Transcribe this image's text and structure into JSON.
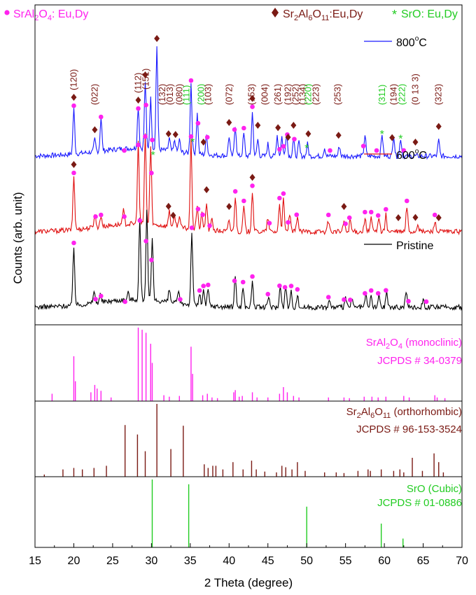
{
  "chart_data": {
    "type": "line",
    "xlabel": "2 Theta (degree)",
    "ylabel": "Counts (arb. unit)",
    "xlim": [
      15,
      70
    ],
    "xticks": [
      15,
      20,
      25,
      30,
      35,
      40,
      45,
      50,
      55,
      60,
      65,
      70
    ],
    "colors": {
      "srAl2O4": "#ff22ee",
      "sr2Al6O11": "#7a1a14",
      "srO": "#22cc22",
      "t800": "#1a1aff",
      "t600": "#e01010",
      "pristine": "#000000"
    },
    "legend": {
      "srAl2O4": {
        "formula": [
          "SrAl",
          "2",
          "O",
          "4"
        ],
        "suffix": ": Eu,Dy"
      },
      "sr2Al6O11": {
        "formula": [
          "Sr",
          "2",
          "Al",
          "6",
          "O",
          "11"
        ],
        "suffix": ":Eu,Dy"
      },
      "srO": {
        "text": "SrO: Eu,Dy"
      }
    },
    "series": [
      {
        "name": "800°C",
        "label_main": "800",
        "label_sup": "o",
        "label_unit": "C",
        "offset": 2.9,
        "peaks": [
          [
            20.0,
            0.8
          ],
          [
            22.7,
            0.22
          ],
          [
            23.5,
            0.6
          ],
          [
            28.3,
            0.75
          ],
          [
            29.2,
            1.2
          ],
          [
            29.9,
            0.9
          ],
          [
            30.7,
            1.85
          ],
          [
            32.3,
            0.22
          ],
          [
            33.0,
            0.2
          ],
          [
            33.6,
            0.22
          ],
          [
            35.1,
            1.25
          ],
          [
            35.9,
            0.72
          ],
          [
            37.1,
            0.35
          ],
          [
            40.0,
            0.35
          ],
          [
            40.8,
            0.55
          ],
          [
            41.9,
            0.4
          ],
          [
            43.0,
            0.78
          ],
          [
            43.7,
            0.3
          ],
          [
            45.0,
            0.22
          ],
          [
            46.2,
            0.38
          ],
          [
            46.8,
            0.35
          ],
          [
            47.4,
            0.42
          ],
          [
            48.3,
            0.3
          ],
          [
            49.0,
            0.25
          ],
          [
            50.1,
            0.22
          ],
          [
            52.3,
            0.15
          ],
          [
            54.2,
            0.18
          ],
          [
            57.5,
            0.38
          ],
          [
            59.7,
            0.4
          ],
          [
            61.2,
            0.38
          ],
          [
            62.1,
            0.32
          ],
          [
            67.0,
            0.28
          ]
        ]
      },
      {
        "name": "600°C",
        "label_main": "600",
        "label_sup": "o",
        "label_unit": "C",
        "offset": 1.55,
        "peaks": [
          [
            20.0,
            0.95
          ],
          [
            22.7,
            0.25
          ],
          [
            23.5,
            0.2
          ],
          [
            26.4,
            0.25
          ],
          [
            28.3,
            1.45
          ],
          [
            29.2,
            1.6
          ],
          [
            29.9,
            1.4
          ],
          [
            32.3,
            0.3
          ],
          [
            33.0,
            0.2
          ],
          [
            33.6,
            0.22
          ],
          [
            35.1,
            1.6
          ],
          [
            35.9,
            0.45
          ],
          [
            36.5,
            0.3
          ],
          [
            37.1,
            0.5
          ],
          [
            37.8,
            0.22
          ],
          [
            40.0,
            0.2
          ],
          [
            40.8,
            0.62
          ],
          [
            41.9,
            0.45
          ],
          [
            43.0,
            0.72
          ],
          [
            45.0,
            0.25
          ],
          [
            46.5,
            0.5
          ],
          [
            47.0,
            0.58
          ],
          [
            47.8,
            0.32
          ],
          [
            48.8,
            0.3
          ],
          [
            52.8,
            0.2
          ],
          [
            54.8,
            0.2
          ],
          [
            55.6,
            0.22
          ],
          [
            57.5,
            0.25
          ],
          [
            58.3,
            0.25
          ],
          [
            59.3,
            0.28
          ],
          [
            60.2,
            0.3
          ],
          [
            62.9,
            0.45
          ],
          [
            64.3,
            0.15
          ],
          [
            66.5,
            0.2
          ]
        ]
      },
      {
        "name": "Pristine",
        "offset": 0.2,
        "peaks": [
          [
            20.0,
            1.05
          ],
          [
            22.6,
            0.22
          ],
          [
            23.4,
            0.15
          ],
          [
            27.0,
            0.12
          ],
          [
            28.5,
            1.45
          ],
          [
            29.4,
            1.6
          ],
          [
            30.1,
            1.1
          ],
          [
            32.3,
            0.22
          ],
          [
            33.5,
            0.2
          ],
          [
            35.2,
            1.32
          ],
          [
            36.2,
            0.2
          ],
          [
            36.7,
            0.28
          ],
          [
            37.3,
            0.3
          ],
          [
            40.8,
            0.55
          ],
          [
            41.8,
            0.35
          ],
          [
            43.0,
            0.45
          ],
          [
            45.1,
            0.2
          ],
          [
            46.6,
            0.42
          ],
          [
            47.3,
            0.38
          ],
          [
            48.0,
            0.28
          ],
          [
            48.8,
            0.22
          ],
          [
            52.9,
            0.12
          ],
          [
            55.0,
            0.18
          ],
          [
            55.8,
            0.15
          ],
          [
            57.6,
            0.22
          ],
          [
            58.3,
            0.2
          ],
          [
            59.3,
            0.22
          ],
          [
            60.3,
            0.3
          ],
          [
            62.8,
            0.3
          ],
          [
            65.0,
            0.15
          ]
        ]
      }
    ],
    "hkl_labels": [
      {
        "hkl": "(120)",
        "x": 20.0,
        "color": "brown"
      },
      {
        "hkl": "(022)",
        "x": 22.7,
        "color": "brown"
      },
      {
        "hkl": "(112)",
        "x": 28.3,
        "color": "brown"
      },
      {
        "hkl": "(151)",
        "x": 29.3,
        "color": "brown"
      },
      {
        "hkl": "(132)",
        "x": 31.4,
        "color": "brown"
      },
      {
        "hkl": "(013)",
        "x": 32.4,
        "color": "brown"
      },
      {
        "hkl": "(080)",
        "x": 33.6,
        "color": "brown"
      },
      {
        "hkl": "(111)",
        "x": 34.5,
        "color": "green"
      },
      {
        "hkl": "(200)",
        "x": 36.4,
        "color": "green"
      },
      {
        "hkl": "(103)",
        "x": 37.3,
        "color": "brown"
      },
      {
        "hkl": "(072)",
        "x": 40.0,
        "color": "brown"
      },
      {
        "hkl": "(153)",
        "x": 42.9,
        "color": "brown"
      },
      {
        "hkl": "(004)",
        "x": 44.6,
        "color": "brown"
      },
      {
        "hkl": "(261)",
        "x": 46.3,
        "color": "brown"
      },
      {
        "hkl": "(192)",
        "x": 47.6,
        "color": "brown"
      },
      {
        "hkl": "(252)",
        "x": 48.6,
        "color": "brown"
      },
      {
        "hkl": "(134)",
        "x": 49.5,
        "color": "brown"
      },
      {
        "hkl": "(220)",
        "x": 50.2,
        "color": "green"
      },
      {
        "hkl": "(223)",
        "x": 51.2,
        "color": "brown"
      },
      {
        "hkl": "(253)",
        "x": 54.0,
        "color": "brown"
      },
      {
        "hkl": "(311)",
        "x": 59.7,
        "color": "green"
      },
      {
        "hkl": "(194)",
        "x": 61.2,
        "color": "brown"
      },
      {
        "hkl": "(222)",
        "x": 62.3,
        "color": "green"
      },
      {
        "hkl": "(0 13 3)",
        "x": 64.0,
        "color": "brown"
      },
      {
        "hkl": "(323)",
        "x": 67.0,
        "color": "brown"
      }
    ],
    "markers": {
      "800": {
        "circles": [
          20.0,
          23.5,
          26.5,
          28.3,
          29.3,
          30.1,
          35.1,
          36.0,
          37.2,
          40.7,
          41.9,
          43.0,
          46.5,
          47.0,
          47.5,
          48.4,
          53.0,
          57.3,
          59.0,
          62.5
        ],
        "diamonds": [
          20.0,
          22.7,
          28.3,
          29.2,
          30.7,
          32.2,
          33.1,
          36.7,
          40.0,
          43.0,
          43.7,
          46.3,
          47.6,
          48.3,
          50.2,
          54.1,
          61.0,
          64.0,
          67.0
        ],
        "stars": [
          30.2,
          35.3,
          50.0,
          59.7,
          62.1
        ]
      },
      "600": {
        "circles": [
          20.0,
          22.8,
          23.5,
          26.5,
          28.3,
          29.2,
          30.0,
          35.1,
          36.0,
          36.6,
          37.5,
          40.8,
          41.9,
          43.0,
          45.2,
          46.5,
          47.0,
          47.6,
          48.7,
          52.8,
          55.0,
          55.5,
          57.5,
          58.3,
          59.2,
          60.2,
          62.9,
          66.5
        ],
        "diamonds": [
          20.0,
          32.2,
          32.8,
          37.1,
          40.0,
          43.0,
          54.8,
          61.8,
          64.0,
          67.0
        ]
      },
      "pristine": {
        "circles": [
          20.0,
          22.8,
          23.5,
          26.6,
          28.5,
          29.3,
          30.0,
          33.7,
          35.2,
          36.2,
          36.7,
          37.3,
          40.7,
          41.8,
          43.0,
          45.0,
          46.5,
          47.2,
          48.0,
          48.8,
          52.8,
          54.8,
          55.6,
          57.5,
          58.3,
          59.2,
          60.2,
          63.1,
          65.4
        ]
      }
    },
    "references": [
      {
        "name": "SrAl2O4 (monoclinic)",
        "title_formula": [
          "SrAl",
          "2",
          "O",
          "4"
        ],
        "title_suffix": " (monoclinic)",
        "card": "JCPDS # 34-0379",
        "color": "srAl2O4",
        "lines": [
          [
            17.2,
            0.1
          ],
          [
            20.0,
            0.61
          ],
          [
            20.2,
            0.27
          ],
          [
            22.2,
            0.12
          ],
          [
            22.7,
            0.22
          ],
          [
            23.0,
            0.17
          ],
          [
            23.5,
            0.14
          ],
          [
            24.8,
            0.05
          ],
          [
            28.3,
            1.0
          ],
          [
            28.8,
            0.97
          ],
          [
            29.3,
            0.93
          ],
          [
            29.9,
            0.78
          ],
          [
            30.1,
            0.52
          ],
          [
            31.6,
            0.08
          ],
          [
            32.3,
            0.06
          ],
          [
            33.6,
            0.07
          ],
          [
            35.1,
            0.74
          ],
          [
            35.3,
            0.37
          ],
          [
            36.6,
            0.08
          ],
          [
            37.2,
            0.1
          ],
          [
            37.8,
            0.05
          ],
          [
            38.5,
            0.04
          ],
          [
            40.6,
            0.12
          ],
          [
            40.8,
            0.15
          ],
          [
            41.3,
            0.06
          ],
          [
            41.7,
            0.07
          ],
          [
            43.0,
            0.12
          ],
          [
            43.6,
            0.05
          ],
          [
            45.0,
            0.05
          ],
          [
            46.5,
            0.1
          ],
          [
            47.0,
            0.19
          ],
          [
            47.5,
            0.12
          ],
          [
            48.3,
            0.07
          ],
          [
            49.0,
            0.05
          ],
          [
            52.8,
            0.05
          ],
          [
            54.8,
            0.05
          ],
          [
            55.5,
            0.04
          ],
          [
            57.4,
            0.06
          ],
          [
            58.4,
            0.06
          ],
          [
            59.2,
            0.05
          ],
          [
            60.2,
            0.06
          ],
          [
            62.5,
            0.07
          ],
          [
            63.2,
            0.05
          ],
          [
            66.5,
            0.08
          ],
          [
            66.8,
            0.05
          ],
          [
            67.8,
            0.04
          ]
        ]
      },
      {
        "name": "Sr2Al6O11 (orthorhombic)",
        "title_formula": [
          "Sr",
          "2",
          "Al",
          "6",
          "O",
          "11"
        ],
        "title_suffix": " (orthorhombic)",
        "card": "JCPDS # 96-153-3524",
        "color": "sr2Al6O11",
        "lines": [
          [
            16.2,
            0.03
          ],
          [
            18.6,
            0.1
          ],
          [
            20.0,
            0.12
          ],
          [
            21.1,
            0.1
          ],
          [
            22.6,
            0.12
          ],
          [
            24.2,
            0.15
          ],
          [
            26.6,
            0.71
          ],
          [
            28.2,
            0.58
          ],
          [
            29.2,
            0.35
          ],
          [
            30.7,
            1.0
          ],
          [
            32.5,
            0.38
          ],
          [
            34.1,
            0.7
          ],
          [
            36.8,
            0.17
          ],
          [
            37.3,
            0.12
          ],
          [
            37.9,
            0.15
          ],
          [
            38.3,
            0.15
          ],
          [
            39.2,
            0.1
          ],
          [
            40.5,
            0.2
          ],
          [
            41.8,
            0.1
          ],
          [
            42.9,
            0.22
          ],
          [
            43.5,
            0.1
          ],
          [
            44.6,
            0.07
          ],
          [
            46.1,
            0.06
          ],
          [
            46.8,
            0.15
          ],
          [
            47.3,
            0.13
          ],
          [
            48.1,
            0.1
          ],
          [
            48.8,
            0.2
          ],
          [
            49.8,
            0.08
          ],
          [
            52.3,
            0.06
          ],
          [
            53.8,
            0.06
          ],
          [
            54.8,
            0.05
          ],
          [
            56.6,
            0.08
          ],
          [
            57.9,
            0.1
          ],
          [
            58.2,
            0.08
          ],
          [
            59.6,
            0.1
          ],
          [
            61.2,
            0.08
          ],
          [
            62.0,
            0.1
          ],
          [
            62.5,
            0.06
          ],
          [
            63.6,
            0.26
          ],
          [
            64.9,
            0.08
          ],
          [
            66.4,
            0.32
          ],
          [
            67.0,
            0.2
          ],
          [
            67.6,
            0.06
          ]
        ]
      },
      {
        "name": "SrO (Cubic)",
        "title_text": "SrO (Cubic)",
        "card": "JCPDS # 01-0886",
        "color": "srO",
        "lines": [
          [
            30.1,
            1.0
          ],
          [
            34.8,
            0.93
          ],
          [
            50.0,
            0.6
          ],
          [
            59.6,
            0.35
          ],
          [
            62.4,
            0.13
          ]
        ]
      }
    ]
  }
}
